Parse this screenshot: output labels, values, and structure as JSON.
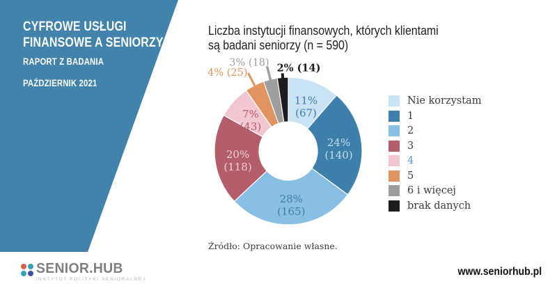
{
  "sidebar": {
    "title_line1": "CYFROWE USŁUGI",
    "title_line2": "FINANSOWE A SENIORZY",
    "subtitle": "RAPORT Z BADANIA",
    "date": "PAŹDZIERNIK 2021",
    "bg_color": "#4283ab"
  },
  "chart_title": {
    "line1": "Liczba instytucji finansowych, których klientami",
    "line2": "są badani seniorzy (n = 590)"
  },
  "chart_data": {
    "type": "pie",
    "subtype": "donut",
    "title": "Liczba instytucji finansowych, których klientami są badani seniorzy (n = 590)",
    "total_n": 590,
    "legend_position": "right",
    "start_angle_deg": 0,
    "direction": "clockwise",
    "slices": [
      {
        "label": "Nie korzystam",
        "value": 67,
        "pct": "11%",
        "color": "#c9e2f4",
        "label_color": "#3d7fa9",
        "label_outside": false
      },
      {
        "label": "1",
        "value": 140,
        "pct": "24%",
        "color": "#3d80ab",
        "label_color": "#c8dbe9",
        "label_outside": false
      },
      {
        "label": "2",
        "value": 165,
        "pct": "28%",
        "color": "#88bfe3",
        "label_color": "#3d7fa9",
        "label_outside": false
      },
      {
        "label": "3",
        "value": 118,
        "pct": "20%",
        "color": "#b55e6b",
        "label_color": "#eed0d5",
        "label_outside": false
      },
      {
        "label": "4",
        "value": 43,
        "pct": "7%",
        "color": "#f2c7d1",
        "label_color": "#b55e6b",
        "label_outside": false,
        "legend_text_color": "#5b9bd5"
      },
      {
        "label": "5",
        "value": 25,
        "pct": "4%",
        "color": "#e1945f",
        "label_color": "#e1945f",
        "label_outside": true
      },
      {
        "label": "6 i więcej",
        "value": 18,
        "pct": "3%",
        "color": "#9e9e9e",
        "label_color": "#9e9e9e",
        "label_outside": true
      },
      {
        "label": "brak danych",
        "value": 14,
        "pct": "2%",
        "color": "#1d1d1b",
        "label_color": "#1d1d1b",
        "label_outside": true,
        "label_bold": true
      }
    ],
    "source": "Źródło: Opracowanie własne."
  },
  "footer": {
    "logo_text": "SENIOR.HUB",
    "logo_subtext": "INSTYTUT POLITYKI SENIORALNEJ",
    "logo_dot_colors": [
      "#d9604b",
      "#35a3b2",
      "#35a3b2",
      "#3f51a0"
    ],
    "website": "www.seniorhub.pl"
  }
}
